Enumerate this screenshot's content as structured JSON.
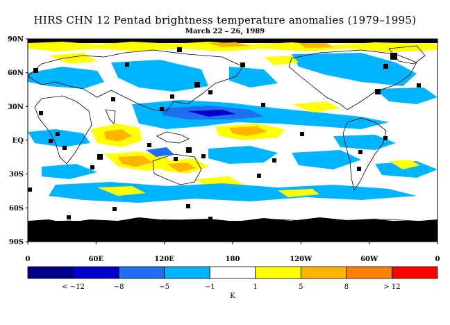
{
  "title": "HIRS CHN 12 Pentad brightness temperature anomalies (1979–1995)",
  "subtitle": "March 22 – 26, 1989",
  "y_ticks": [
    "90N",
    "60N",
    "30N",
    "EQ",
    "30S",
    "60S",
    "90S"
  ],
  "x_ticks": [
    "0",
    "60E",
    "120E",
    "180",
    "120W",
    "60W",
    "0"
  ],
  "colorbar": {
    "colors": [
      "#00008b",
      "#0000cd",
      "#1e6ef0",
      "#00b4ff",
      "#ffffff",
      "#ffff00",
      "#ffb400",
      "#ff8200",
      "#ff0000"
    ],
    "labels": [
      "< −12",
      "−8",
      "−5",
      "−1",
      "1",
      "5",
      "8",
      "> 12"
    ],
    "unit": "K"
  }
}
